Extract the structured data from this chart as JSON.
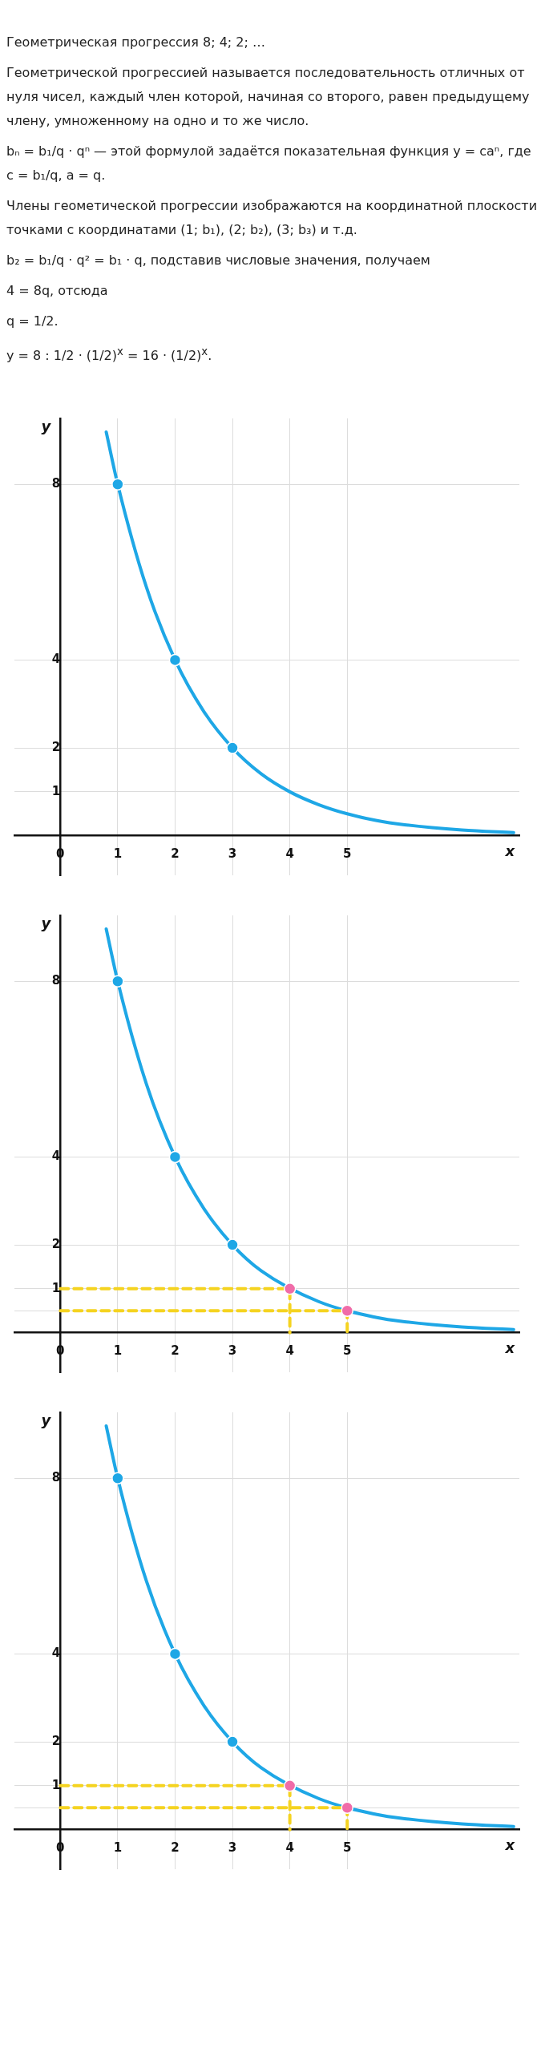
{
  "chart_data": [
    {
      "type": "other",
      "annotations": [
        "Геометрическая прогрессия 8; 4; 2; …",
        "Геометрической прогрессией называется последовательность отличных от нуля чисел, каждый член которой, начиная со второго, равен предыдущему члену, умноженному на одно и то же число.",
        "bₙ = b₁/q · qⁿ — этой формулой задаётся показательная функция y = caⁿ, где c = b₁/q, a = q.",
        "Члены геометической прогрессии изображаются на координатной плоскости точками с координатами (1; b₁), (2; b₂), (3; b₃) и т.д.",
        "b₂ = b₁/q · q² = b₁ · q, подставив числовые значения, получаем",
        "4 = 8q, отсюда",
        "q = 1/2.",
        "y = 8 : 1/2 · (1/2)$^{x}$ = 16 · (1/2)$^{x}$."
      ]
    },
    {
      "type": "line",
      "xlabel": "x",
      "ylabel": "y",
      "xlim": [
        -0.8,
        8
      ],
      "ylim": [
        -0.9,
        9.5
      ],
      "xticks": [
        0,
        1,
        2,
        3,
        4,
        5
      ],
      "yticks": [
        1,
        2,
        4,
        8
      ],
      "grid": true,
      "legend": false,
      "series": [
        {
          "type": "line",
          "color": "#1ea7e6",
          "x": [
            0.8,
            1,
            1.5,
            2,
            2.5,
            3,
            3.5,
            4,
            4.5,
            5,
            5.5,
            6,
            7,
            7.9
          ],
          "values": [
            9.19,
            8,
            5.66,
            4,
            2.83,
            2,
            1.41,
            1,
            0.71,
            0.5,
            0.35,
            0.25,
            0.13,
            0.07
          ]
        },
        {
          "type": "scatter",
          "color": "#1ea7e6",
          "marker": "circle",
          "x": [
            1,
            2,
            3
          ],
          "values": [
            8,
            4,
            2
          ]
        }
      ]
    },
    {
      "type": "line",
      "xlabel": "x",
      "ylabel": "y",
      "xlim": [
        -0.8,
        8
      ],
      "ylim": [
        -0.9,
        9.5
      ],
      "xticks": [
        0,
        1,
        2,
        3,
        4,
        5
      ],
      "yticks": [
        {
          "value": 0.5,
          "label": null
        },
        1,
        2,
        4,
        8
      ],
      "grid": true,
      "legend": false,
      "series": [
        {
          "type": "line",
          "color": "#f5d320",
          "line_style": "dashed",
          "x": [
            0,
            4,
            4
          ],
          "values": [
            1,
            1,
            0
          ]
        },
        {
          "type": "line",
          "color": "#f5d320",
          "line_style": "dashed",
          "x": [
            0,
            5,
            5
          ],
          "values": [
            0.5,
            0.5,
            0
          ]
        },
        {
          "type": "line",
          "color": "#1ea7e6",
          "x": [
            0.8,
            1,
            1.5,
            2,
            2.5,
            3,
            3.5,
            4.5,
            5.5,
            6,
            7,
            7.9
          ],
          "values": [
            9.19,
            8,
            5.66,
            4,
            2.83,
            2,
            1.41,
            0.71,
            0.35,
            0.25,
            0.13,
            0.07
          ]
        },
        {
          "type": "scatter",
          "color": "#1ea7e6",
          "marker": "circle",
          "x": [
            1,
            2,
            3
          ],
          "values": [
            8,
            4,
            2
          ]
        },
        {
          "type": "scatter",
          "color": "#f06ca8",
          "marker": "circle",
          "x": [
            4,
            5
          ],
          "values": [
            1,
            0.5
          ]
        }
      ]
    },
    {
      "type": "line",
      "xlabel": "x",
      "ylabel": "y",
      "xlim": [
        -0.8,
        8
      ],
      "ylim": [
        -0.9,
        9.5
      ],
      "xticks": [
        0,
        1,
        2,
        3,
        4,
        5
      ],
      "yticks": [
        {
          "value": 0.5,
          "label": null
        },
        1,
        2,
        4,
        8
      ],
      "grid": true,
      "legend": false,
      "series": [
        {
          "type": "line",
          "color": "#f5d320",
          "line_style": "dashed",
          "x": [
            0,
            4,
            4
          ],
          "values": [
            1,
            1,
            0
          ]
        },
        {
          "type": "line",
          "color": "#f5d320",
          "line_style": "dashed",
          "x": [
            0,
            5,
            5
          ],
          "values": [
            0.5,
            0.5,
            0
          ]
        },
        {
          "type": "line",
          "color": "#1ea7e6",
          "x": [
            0.8,
            1,
            1.5,
            2,
            2.5,
            3,
            3.5,
            4.5,
            5.5,
            6,
            7,
            7.9
          ],
          "values": [
            9.19,
            8,
            5.66,
            4,
            2.83,
            2,
            1.41,
            0.71,
            0.35,
            0.25,
            0.13,
            0.07
          ]
        },
        {
          "type": "scatter",
          "color": "#1ea7e6",
          "marker": "circle",
          "x": [
            1,
            2,
            3
          ],
          "values": [
            8,
            4,
            2
          ]
        },
        {
          "type": "scatter",
          "color": "#f06ca8",
          "marker": "circle",
          "x": [
            4,
            5
          ],
          "values": [
            1,
            0.5
          ]
        }
      ]
    }
  ]
}
